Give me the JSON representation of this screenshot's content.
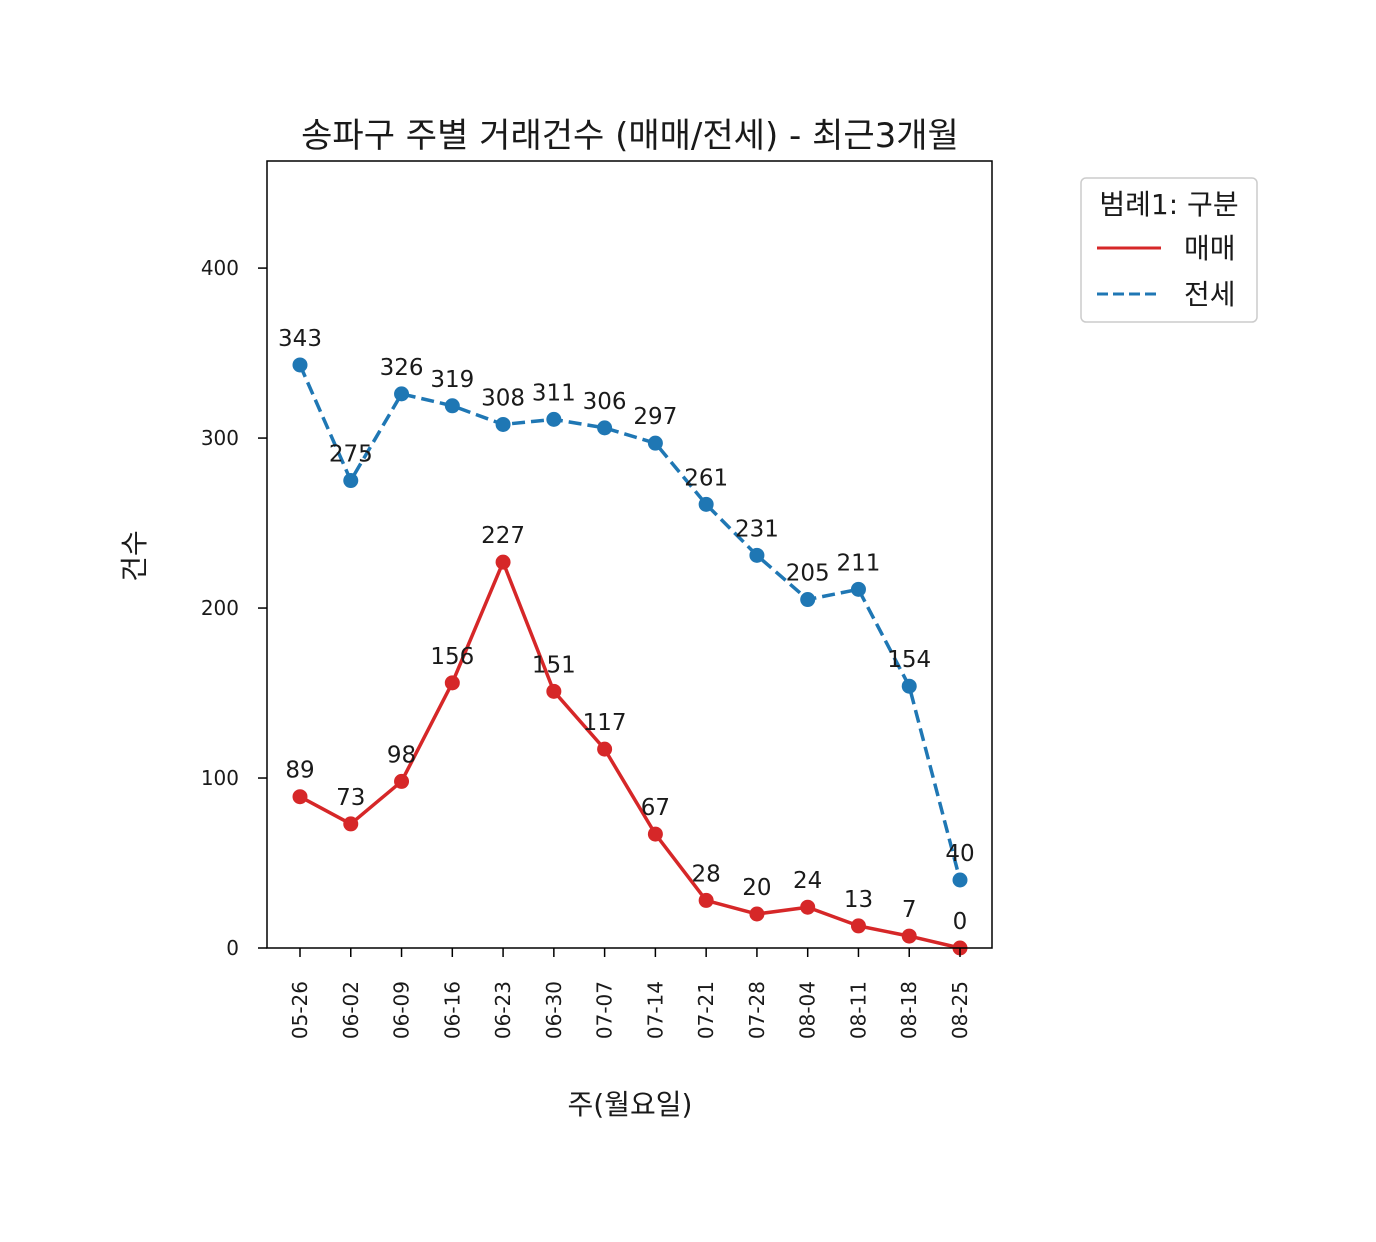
{
  "chart_data": {
    "type": "line",
    "title": "송파구 주별 거래건수 (매매/전세) - 최근3개월",
    "xlabel": "주(월요일)",
    "ylabel": "건수",
    "categories": [
      "05-26",
      "06-02",
      "06-09",
      "06-16",
      "06-23",
      "06-30",
      "07-07",
      "07-14",
      "07-21",
      "07-28",
      "08-04",
      "08-11",
      "08-18",
      "08-25"
    ],
    "ylim": [
      0,
      463
    ],
    "yticks": [
      0,
      100,
      200,
      300,
      400
    ],
    "grid": false,
    "legend": {
      "title": "범례1: 구분",
      "placement": "outside-right-top"
    },
    "series": [
      {
        "name": "매매",
        "color": "#d62728",
        "linestyle": "solid",
        "values": [
          89,
          73,
          98,
          156,
          227,
          151,
          117,
          67,
          28,
          20,
          24,
          13,
          7,
          0
        ]
      },
      {
        "name": "전세",
        "color": "#1f77b4",
        "linestyle": "dashed",
        "values": [
          343,
          275,
          326,
          319,
          308,
          311,
          306,
          297,
          261,
          231,
          205,
          211,
          154,
          40
        ]
      }
    ]
  }
}
